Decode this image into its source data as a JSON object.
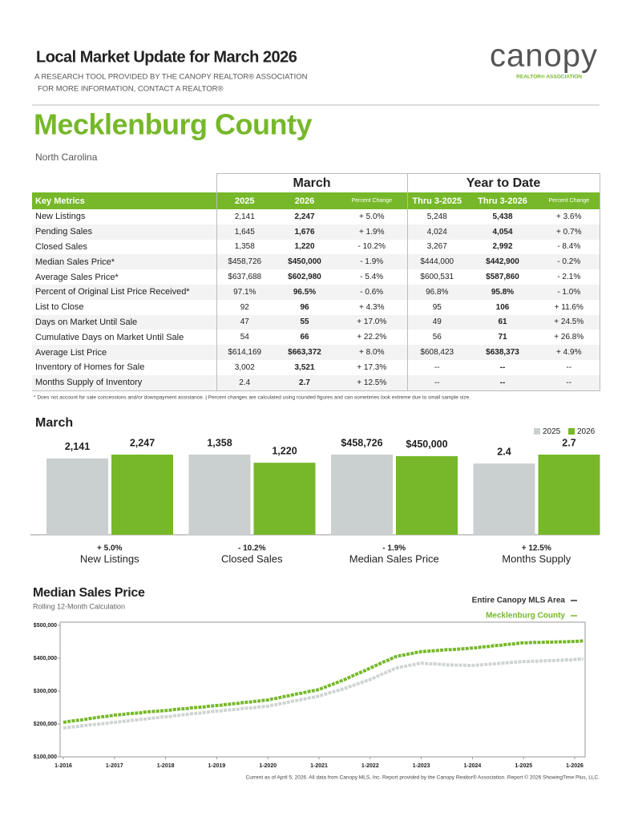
{
  "header": {
    "title": "Local Market Update for March 2026",
    "tagline": "A RESEARCH TOOL PROVIDED BY THE CANOPY REALTOR® ASSOCIATION",
    "contact": "FOR MORE INFORMATION, CONTACT A REALTOR®",
    "logo": "canopy",
    "logo_subtitle": "REALTOR® ASSOCIATION"
  },
  "location": {
    "county": "Mecklenburg County",
    "state": "North Carolina"
  },
  "table": {
    "groups": [
      "March",
      "Year to Date"
    ],
    "columns": [
      "Key Metrics",
      "2025",
      "2026",
      "Percent Change",
      "Thru 3-2025",
      "Thru 3-2026",
      "Percent Change"
    ],
    "rows": [
      [
        "New Listings",
        "2,141",
        "2,247",
        "+ 5.0%",
        "5,248",
        "5,438",
        "+ 3.6%"
      ],
      [
        "Pending Sales",
        "1,645",
        "1,676",
        "+ 1.9%",
        "4,024",
        "4,054",
        "+ 0.7%"
      ],
      [
        "Closed Sales",
        "1,358",
        "1,220",
        "- 10.2%",
        "3,267",
        "2,992",
        "- 8.4%"
      ],
      [
        "Median Sales Price*",
        "$458,726",
        "$450,000",
        "- 1.9%",
        "$444,000",
        "$442,900",
        "- 0.2%"
      ],
      [
        "Average Sales Price*",
        "$637,688",
        "$602,980",
        "- 5.4%",
        "$600,531",
        "$587,860",
        "- 2.1%"
      ],
      [
        "Percent of Original List Price Received*",
        "97.1%",
        "96.5%",
        "- 0.6%",
        "96.8%",
        "95.8%",
        "- 1.0%"
      ],
      [
        "List to Close",
        "92",
        "96",
        "+ 4.3%",
        "95",
        "106",
        "+ 11.6%"
      ],
      [
        "Days on Market Until Sale",
        "47",
        "55",
        "+ 17.0%",
        "49",
        "61",
        "+ 24.5%"
      ],
      [
        "Cumulative Days on Market Until Sale",
        "54",
        "66",
        "+ 22.2%",
        "56",
        "71",
        "+ 26.8%"
      ],
      [
        "Average List Price",
        "$614,169",
        "$663,372",
        "+ 8.0%",
        "$608,423",
        "$638,373",
        "+ 4.9%"
      ],
      [
        "Inventory of Homes for Sale",
        "3,002",
        "3,521",
        "+ 17.3%",
        "--",
        "--",
        "--"
      ],
      [
        "Months Supply of Inventory",
        "2.4",
        "2.7",
        "+ 12.5%",
        "--",
        "--",
        "--"
      ]
    ],
    "footnote": "* Does not account for sale concessions and/or downpayment assistance.  |  Percent changes are calculated using rounded figures and can sometimes look extreme due to small sample size."
  },
  "chart_data": [
    {
      "type": "bar",
      "title": "March",
      "categories": [
        "New Listings",
        "Closed Sales",
        "Median Sales Price",
        "Months Supply"
      ],
      "change_labels": [
        "+ 5.0%",
        "- 10.2%",
        "- 1.9%",
        "+ 12.5%"
      ],
      "series": [
        {
          "name": "2025",
          "color": "#c9d0cf",
          "values": [
            2141,
            1358,
            458726,
            2.4
          ],
          "value_labels": [
            "2,141",
            "1,358",
            "$458,726",
            "2.4"
          ]
        },
        {
          "name": "2026",
          "color": "#76b82a",
          "values": [
            2247,
            1220,
            450000,
            2.7
          ],
          "value_labels": [
            "2,247",
            "1,220",
            "$450,000",
            "2.7"
          ]
        }
      ]
    },
    {
      "type": "line",
      "title": "Median Sales Price",
      "subtitle": "Rolling 12-Month Calculation",
      "x": [
        "1-2016",
        null,
        null,
        null,
        null,
        null,
        null,
        null,
        null,
        null,
        null,
        null,
        "1-2017",
        null,
        null,
        null,
        null,
        null,
        null,
        null,
        null,
        null,
        null,
        null,
        "1-2018",
        null,
        null,
        null,
        null,
        null,
        null,
        null,
        null,
        null,
        null,
        null,
        "1-2019",
        null,
        null,
        null,
        null,
        null,
        null,
        null,
        null,
        null,
        null,
        null,
        "1-2020",
        null,
        null,
        null,
        null,
        null,
        null,
        null,
        null,
        null,
        null,
        null,
        "1-2021",
        null,
        null,
        null,
        null,
        null,
        null,
        null,
        null,
        null,
        null,
        null,
        "1-2022",
        null,
        null,
        null,
        null,
        null,
        null,
        null,
        null,
        null,
        null,
        null,
        "1-2023",
        null,
        null,
        null,
        null,
        null,
        null,
        null,
        null,
        null,
        null,
        null,
        "1-2024",
        null,
        null,
        null,
        null,
        null,
        null,
        null,
        null,
        null,
        null,
        null,
        "1-2025",
        null,
        null,
        null,
        null,
        null,
        null,
        null,
        null,
        null,
        null,
        null,
        "1-2026",
        null,
        null
      ],
      "ylim": [
        100000,
        500000
      ],
      "yticks": [
        {
          "value": 100000,
          "label": "$100,000"
        },
        {
          "value": 200000,
          "label": "$200,000"
        },
        {
          "value": 300000,
          "label": "$300,000"
        },
        {
          "value": 400000,
          "label": "$400,000"
        },
        {
          "value": 500000,
          "label": "$500,000"
        }
      ],
      "series": [
        {
          "name": "Entire Canopy MLS Area",
          "color": "#cfd4d3",
          "legend_color": "#333333",
          "values": [
            188000,
            189000,
            191000,
            192000,
            194000,
            195000,
            197000,
            198000,
            199000,
            201000,
            202000,
            204000,
            205000,
            206000,
            208000,
            209000,
            211000,
            212000,
            214000,
            215000,
            216000,
            218000,
            219000,
            221000,
            222000,
            223000,
            225000,
            226000,
            228000,
            229000,
            231000,
            232000,
            233000,
            235000,
            236000,
            238000,
            239000,
            240000,
            242000,
            243000,
            244000,
            245000,
            247000,
            248000,
            249000,
            250000,
            252000,
            253000,
            254000,
            257000,
            259000,
            262000,
            264000,
            267000,
            270000,
            272000,
            275000,
            277000,
            280000,
            282000,
            285000,
            289000,
            293000,
            297000,
            300000,
            304000,
            308000,
            313000,
            317000,
            322000,
            326000,
            331000,
            335000,
            341000,
            347000,
            353000,
            358000,
            364000,
            370000,
            373000,
            375000,
            378000,
            380000,
            383000,
            385000,
            384000,
            383000,
            383000,
            382000,
            381000,
            380000,
            380000,
            379000,
            379000,
            379000,
            378000,
            378000,
            379000,
            380000,
            381000,
            382000,
            383000,
            384000,
            385000,
            386000,
            387000,
            388000,
            389000,
            390000,
            390000,
            391000,
            391000,
            392000,
            392000,
            393000,
            393000,
            394000,
            394000,
            395000,
            395000,
            396000,
            397000,
            398000
          ]
        },
        {
          "name": "Mecklenburg County",
          "color": "#76b82a",
          "legend_color": "#76b82a",
          "values": [
            205000,
            207000,
            209000,
            211000,
            212000,
            214000,
            216000,
            218000,
            220000,
            222000,
            223000,
            225000,
            227000,
            228000,
            229000,
            231000,
            232000,
            233000,
            234000,
            236000,
            237000,
            238000,
            239000,
            240000,
            241000,
            242000,
            244000,
            245000,
            246000,
            247000,
            249000,
            250000,
            251000,
            252000,
            254000,
            255000,
            256000,
            257000,
            259000,
            260000,
            262000,
            263000,
            265000,
            266000,
            267000,
            269000,
            270000,
            272000,
            273000,
            276000,
            278000,
            281000,
            284000,
            286000,
            289000,
            292000,
            294000,
            297000,
            300000,
            302000,
            305000,
            310000,
            315000,
            320000,
            325000,
            330000,
            335000,
            341000,
            347000,
            353000,
            358000,
            364000,
            370000,
            376000,
            382000,
            388000,
            393000,
            399000,
            405000,
            408000,
            410000,
            413000,
            415000,
            418000,
            420000,
            421000,
            422000,
            423000,
            424000,
            425000,
            426000,
            426000,
            427000,
            428000,
            429000,
            430000,
            431000,
            432000,
            434000,
            435000,
            436000,
            438000,
            439000,
            440000,
            442000,
            443000,
            444000,
            446000,
            447000,
            447000,
            448000,
            448000,
            448000,
            449000,
            449000,
            449000,
            450000,
            450000,
            450000,
            451000,
            451000,
            452000,
            453000
          ]
        }
      ]
    }
  ],
  "footer": "Current as of April 5, 2026. All data from Canopy MLS, Inc. Report provided by the Canopy Realtor® Association. Report © 2026 ShowingTime Plus, LLC."
}
